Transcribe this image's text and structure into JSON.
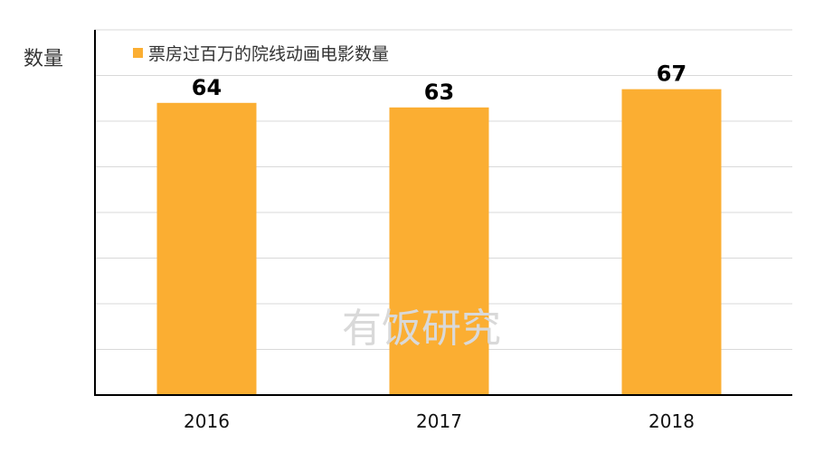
{
  "chart_data": {
    "type": "bar",
    "categories": [
      "2016",
      "2017",
      "2018"
    ],
    "series": [
      {
        "name": "票房过百万的院线动画电影数量",
        "values": [
          64,
          63,
          67
        ]
      }
    ],
    "ylabel": "数量",
    "xlabel": "",
    "ylim": [
      0,
      80
    ],
    "grid": true,
    "legend": "top-left",
    "colors": {
      "bar": "#FBAE32",
      "grid": "#d9d9d9",
      "axis": "#000000"
    }
  },
  "watermark": "有饭研究"
}
